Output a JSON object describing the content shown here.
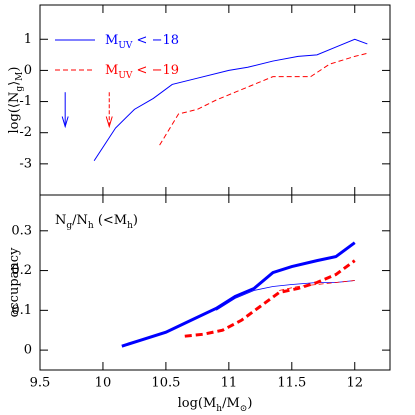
{
  "chart_data": [
    {
      "type": "line",
      "ylabel": [
        "log(⟨N",
        "g",
        "⟩",
        "M",
        ")"
      ],
      "xlim": [
        9.5,
        12.28
      ],
      "ylim": [
        -4,
        2.1
      ],
      "yticks": [
        -3,
        -2,
        -1,
        0,
        1
      ],
      "series": [
        {
          "label": [
            "M",
            "UV",
            " < −18"
          ],
          "color": "#0000ff",
          "dash": false,
          "width": 1,
          "x": [
            9.93,
            10.1,
            10.25,
            10.4,
            10.55,
            10.75,
            11,
            11.15,
            11.35,
            11.55,
            11.7,
            11.85,
            12,
            12.1
          ],
          "values": [
            -2.9,
            -1.85,
            -1.25,
            -0.9,
            -0.45,
            -0.25,
            0,
            0.1,
            0.3,
            0.45,
            0.5,
            0.75,
            1.0,
            0.85
          ]
        },
        {
          "label": [
            "M",
            "UV",
            " < −19"
          ],
          "color": "#ff0000",
          "dash": true,
          "width": 1,
          "x": [
            10.45,
            10.6,
            10.75,
            10.9,
            11.05,
            11.2,
            11.35,
            11.5,
            11.65,
            11.8,
            12,
            12.1
          ],
          "values": [
            -2.4,
            -1.4,
            -1.25,
            -0.95,
            -0.7,
            -0.45,
            -0.2,
            -0.2,
            -0.2,
            0.2,
            0.45,
            0.55
          ]
        }
      ],
      "upper_limits": [
        {
          "x": 9.7,
          "y": -0.7,
          "to": -1.8,
          "color": "#0000ff",
          "dash": false
        },
        {
          "x": 10.05,
          "y": -0.7,
          "to": -1.8,
          "color": "#ff0000",
          "dash": true
        }
      ]
    },
    {
      "type": "line",
      "ylabel": [
        "occupancy"
      ],
      "annotation": [
        "N",
        "g",
        "/N",
        "h",
        " (<M",
        "h",
        ")"
      ],
      "xlabel": [
        "log(M",
        "h",
        "/M",
        "⊙",
        ")"
      ],
      "xlim": [
        9.5,
        12.28
      ],
      "xticks": [
        9.5,
        10,
        10.5,
        11,
        11.5,
        12
      ],
      "ylim": [
        -0.05,
        0.39
      ],
      "yticks": [
        0,
        0.1,
        0.2,
        0.3
      ],
      "series": [
        {
          "color": "#0000ff",
          "dash": false,
          "width": 3,
          "x": [
            10.15,
            10.3,
            10.5,
            10.7,
            10.9,
            11.05,
            11.2,
            11.35,
            11.5,
            11.7,
            11.85,
            12
          ],
          "values": [
            0.01,
            0.025,
            0.045,
            0.075,
            0.105,
            0.135,
            0.155,
            0.195,
            0.21,
            0.225,
            0.235,
            0.27
          ]
        },
        {
          "color": "#0000ff",
          "dash": false,
          "width": 0.8,
          "x": [
            10.9,
            11.05,
            11.2,
            11.35,
            11.5,
            11.7,
            11.85,
            12
          ],
          "values": [
            0.1,
            0.13,
            0.15,
            0.16,
            0.165,
            0.17,
            0.17,
            0.175
          ]
        },
        {
          "color": "#ff0000",
          "dash": true,
          "width": 3,
          "x": [
            10.65,
            10.8,
            10.95,
            11.1,
            11.25,
            11.4,
            11.55,
            11.7,
            11.85,
            12
          ],
          "values": [
            0.035,
            0.04,
            0.05,
            0.075,
            0.11,
            0.145,
            0.155,
            0.17,
            0.19,
            0.225
          ]
        },
        {
          "color": "#ff0000",
          "dash": true,
          "width": 0.8,
          "x": [
            11.4,
            11.55,
            11.7,
            11.85,
            12
          ],
          "values": [
            0.15,
            0.16,
            0.165,
            0.17,
            0.175
          ]
        }
      ]
    }
  ]
}
